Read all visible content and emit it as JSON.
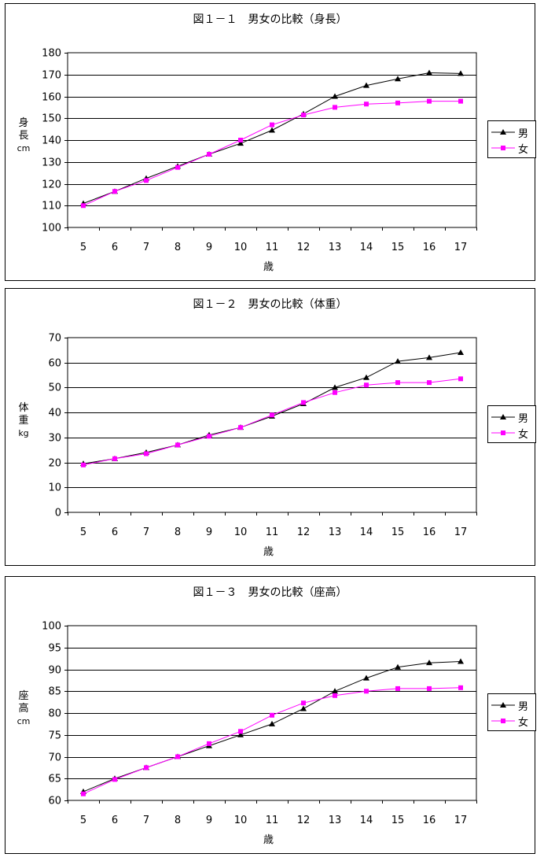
{
  "chart_data": [
    {
      "type": "line",
      "title": "図１－１　男女の比較（身長）",
      "ylabel_chars": [
        "身",
        "長"
      ],
      "yunit": "cm",
      "xlabel": "歳",
      "categories": [
        "5",
        "6",
        "7",
        "8",
        "9",
        "10",
        "11",
        "12",
        "13",
        "14",
        "15",
        "16",
        "17"
      ],
      "ylim": [
        100,
        180
      ],
      "ystep": 10,
      "series": [
        {
          "name": "男",
          "color": "#000000",
          "marker": "triangle",
          "values": [
            111,
            116.5,
            122.5,
            128,
            133.5,
            138.5,
            144.5,
            152,
            160,
            165,
            168,
            170.8,
            170.5
          ]
        },
        {
          "name": "女",
          "color": "#ff00ff",
          "marker": "square",
          "values": [
            110,
            116.5,
            121.5,
            127.5,
            133.5,
            140,
            147,
            151.5,
            155,
            156.5,
            157,
            157.8,
            157.8
          ]
        }
      ],
      "legend": "right",
      "grid": true
    },
    {
      "type": "line",
      "title": "図１－２　男女の比較（体重）",
      "ylabel_chars": [
        "体",
        "重"
      ],
      "yunit": "kg",
      "xlabel": "歳",
      "categories": [
        "5",
        "6",
        "7",
        "8",
        "9",
        "10",
        "11",
        "12",
        "13",
        "14",
        "15",
        "16",
        "17"
      ],
      "ylim": [
        0,
        70
      ],
      "ystep": 10,
      "series": [
        {
          "name": "男",
          "color": "#000000",
          "marker": "triangle",
          "values": [
            19.5,
            21.5,
            24,
            27,
            31,
            34,
            38.5,
            43.5,
            50,
            54,
            60.5,
            62,
            64
          ]
        },
        {
          "name": "女",
          "color": "#ff00ff",
          "marker": "square",
          "values": [
            19,
            21.5,
            23.5,
            27,
            30.5,
            34,
            39,
            44,
            48,
            51,
            52,
            52,
            53.5
          ]
        }
      ],
      "legend": "right",
      "grid": true
    },
    {
      "type": "line",
      "title": "図１－３　男女の比較（座高）",
      "ylabel_chars": [
        "座",
        "高"
      ],
      "yunit": "cm",
      "xlabel": "歳",
      "categories": [
        "5",
        "6",
        "7",
        "8",
        "9",
        "10",
        "11",
        "12",
        "13",
        "14",
        "15",
        "16",
        "17"
      ],
      "ylim": [
        60,
        100
      ],
      "ystep": 5,
      "series": [
        {
          "name": "男",
          "color": "#000000",
          "marker": "triangle",
          "values": [
            62,
            65,
            67.5,
            70,
            72.5,
            75,
            77.5,
            81,
            85,
            88,
            90.5,
            91.5,
            91.8
          ]
        },
        {
          "name": "女",
          "color": "#ff00ff",
          "marker": "square",
          "values": [
            61.5,
            64.8,
            67.5,
            70,
            73,
            75.8,
            79.5,
            82.3,
            84,
            85,
            85.6,
            85.6,
            85.8
          ]
        }
      ],
      "legend": "right",
      "grid": true
    }
  ]
}
